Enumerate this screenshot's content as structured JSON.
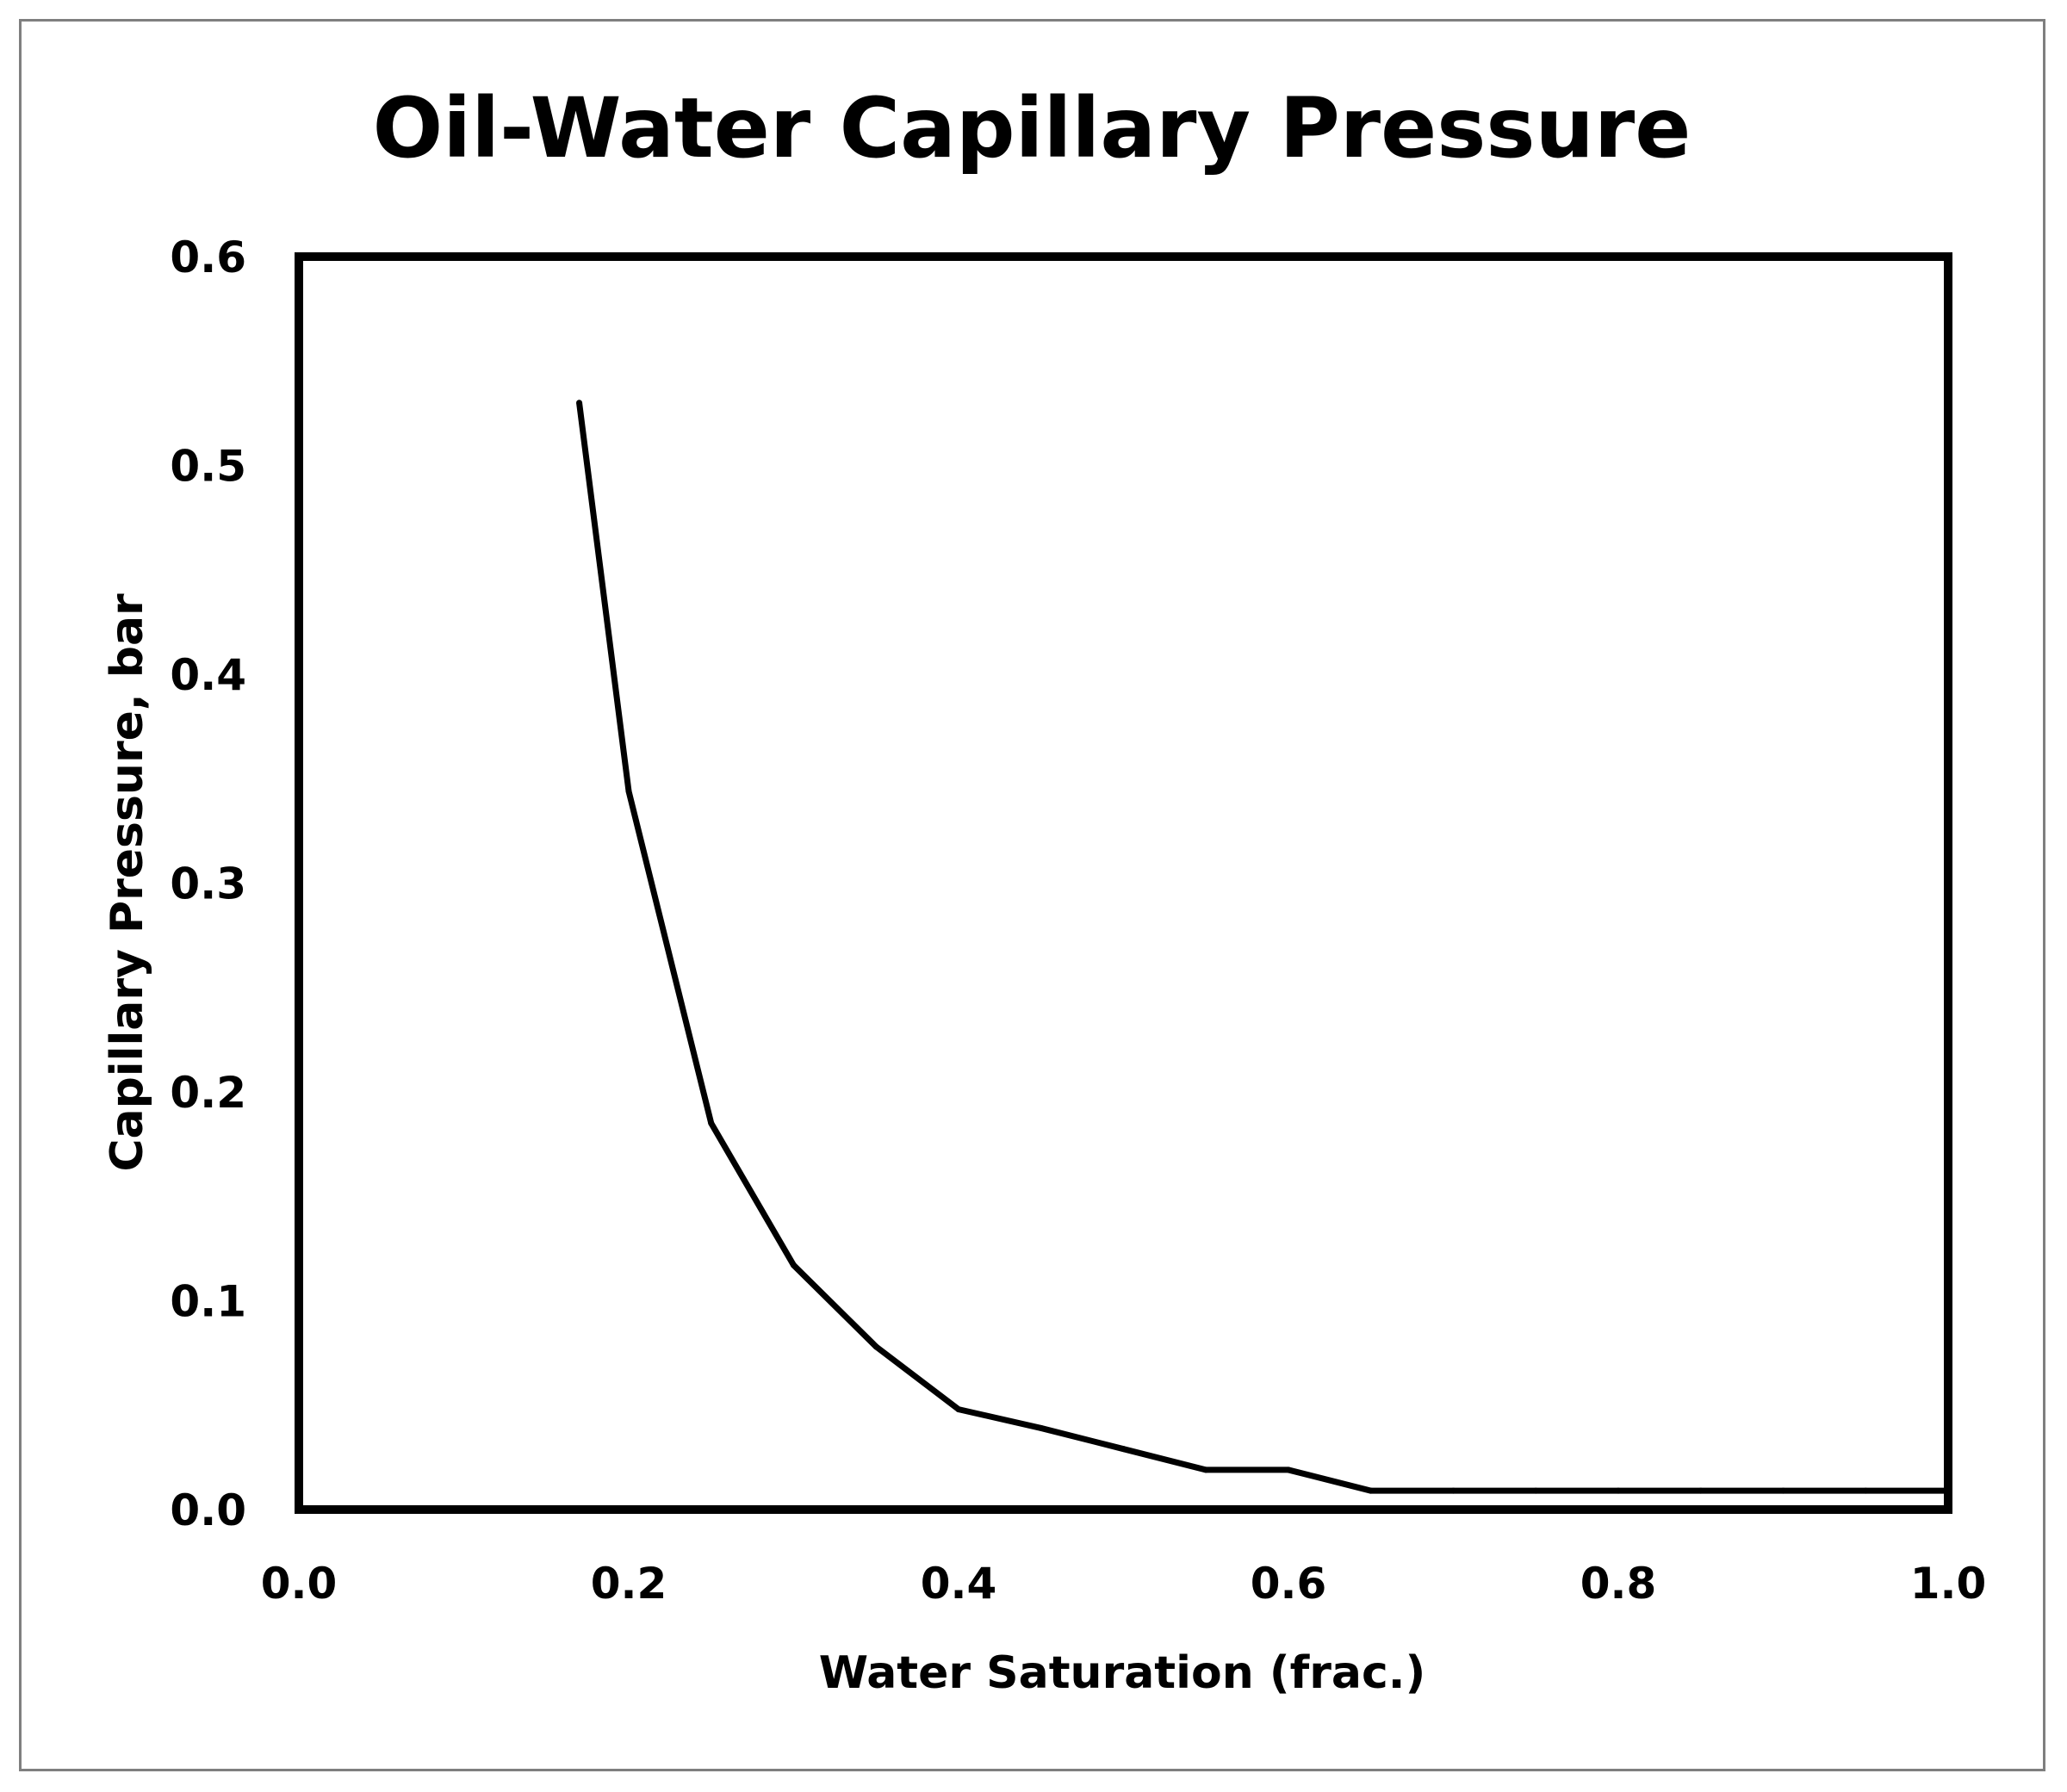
{
  "chart_data": {
    "type": "line",
    "title": "Oil-Water Capillary Pressure",
    "xlabel": "Water Saturation  (frac.)",
    "ylabel": "Capillary Pressure, bar",
    "xlim": [
      0.0,
      1.0
    ],
    "ylim": [
      0.0,
      0.6
    ],
    "x_ticks": [
      "0.0",
      "0.2",
      "0.4",
      "0.6",
      "0.8",
      "1.0"
    ],
    "y_ticks": [
      "0.0",
      "0.1",
      "0.2",
      "0.3",
      "0.4",
      "0.5",
      "0.6"
    ],
    "grid": false,
    "series": [
      {
        "name": "Capillary Pressure",
        "color": "#000000",
        "x": [
          0.17,
          0.2,
          0.25,
          0.3,
          0.35,
          0.4,
          0.45,
          0.5,
          0.55,
          0.6,
          0.65,
          0.7,
          0.75,
          0.8,
          0.85,
          0.9,
          0.95,
          1.0
        ],
        "y": [
          0.53,
          0.344,
          0.185,
          0.117,
          0.078,
          0.048,
          0.039,
          0.029,
          0.019,
          0.019,
          0.009,
          0.009,
          0.009,
          0.009,
          0.009,
          0.009,
          0.009,
          0.009
        ]
      }
    ]
  }
}
